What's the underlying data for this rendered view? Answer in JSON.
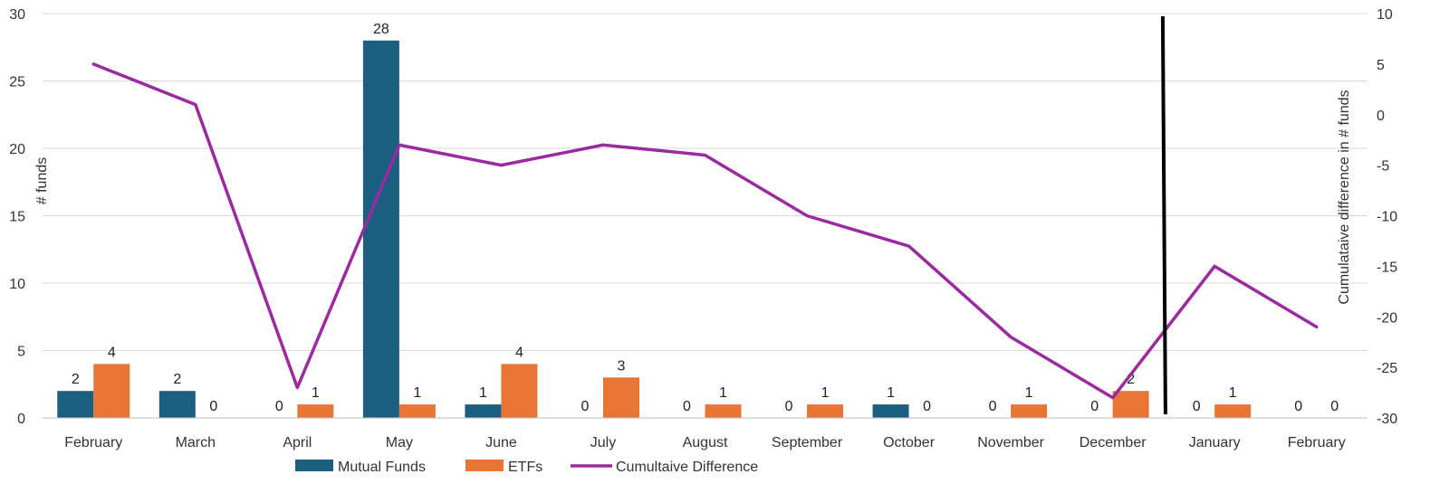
{
  "chart_data": {
    "type": "bar",
    "categories": [
      "February",
      "March",
      "April",
      "May",
      "June",
      "July",
      "August",
      "September",
      "October",
      "November",
      "December",
      "January",
      "February"
    ],
    "series": [
      {
        "name": "Mutual Funds",
        "type": "bar",
        "axis": "left",
        "color": "#1a5f80",
        "values": [
          2,
          2,
          0,
          28,
          1,
          0,
          0,
          0,
          1,
          0,
          0,
          0,
          0
        ]
      },
      {
        "name": "ETFs",
        "type": "bar",
        "axis": "left",
        "color": "#e87533",
        "values": [
          4,
          0,
          1,
          1,
          4,
          3,
          1,
          1,
          0,
          1,
          2,
          1,
          0
        ]
      },
      {
        "name": "Cumultaive Difference",
        "type": "line",
        "axis": "right",
        "color": "#9b2aa0",
        "values": [
          5,
          1,
          -27,
          -3,
          -5,
          -3,
          -4,
          -10,
          -13,
          -22,
          -28,
          -15,
          -21
        ]
      }
    ],
    "ylabel": "# funds",
    "y2label": "Cumulataive difference in # funds",
    "ylim": [
      0,
      30
    ],
    "y2lim": [
      -30,
      10
    ],
    "yticks": [
      "0",
      "5",
      "10",
      "15",
      "20",
      "25",
      "30"
    ],
    "y2ticks": [
      "-30",
      "-25",
      "-20",
      "-15",
      "-10",
      "-5",
      "0",
      "5",
      "10"
    ],
    "grid": true,
    "legend_position": "bottom",
    "divider_between": [
      "December",
      "January"
    ]
  }
}
